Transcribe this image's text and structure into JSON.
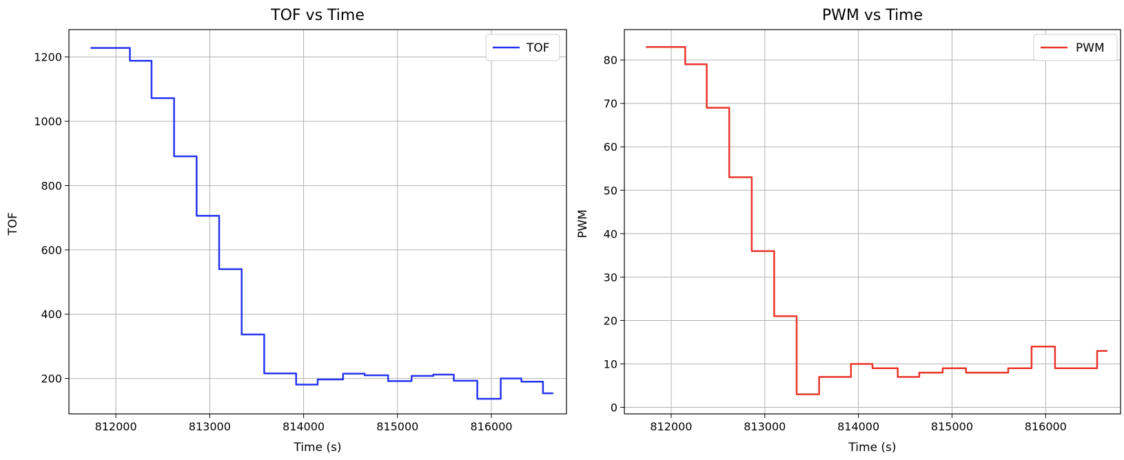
{
  "chart_data": [
    {
      "type": "line",
      "title": "TOF vs Time",
      "xlabel": "Time (s)",
      "ylabel": "TOF",
      "xlim": [
        811500,
        816800
      ],
      "ylim": [
        90,
        1285
      ],
      "xticks": [
        812000,
        813000,
        814000,
        815000,
        816000
      ],
      "yticks": [
        200,
        400,
        600,
        800,
        1000,
        1200
      ],
      "grid": true,
      "legend_position": "top-right",
      "series": [
        {
          "name": "TOF",
          "color": "#2433f0",
          "step": true,
          "x": [
            811730,
            812150,
            812380,
            812620,
            812860,
            813100,
            813340,
            813580,
            813920,
            814150,
            814420,
            814650,
            814900,
            815150,
            815380,
            815600,
            815850,
            816100,
            816320,
            816550,
            816660
          ],
          "y": [
            1228,
            1188,
            1072,
            891,
            706,
            540,
            337,
            216,
            181,
            197,
            215,
            210,
            192,
            208,
            212,
            193,
            137,
            200,
            190,
            154,
            154
          ]
        }
      ]
    },
    {
      "type": "line",
      "title": "PWM vs Time",
      "xlabel": "Time (s)",
      "ylabel": "PWM",
      "xlim": [
        811500,
        816800
      ],
      "ylim": [
        -1.5,
        87
      ],
      "xticks": [
        812000,
        813000,
        814000,
        815000,
        816000
      ],
      "yticks": [
        0,
        10,
        20,
        30,
        40,
        50,
        60,
        70,
        80
      ],
      "grid": true,
      "legend_position": "top-right",
      "series": [
        {
          "name": "PWM",
          "color": "#e8352a",
          "step": true,
          "x": [
            811730,
            812150,
            812380,
            812620,
            812860,
            813100,
            813340,
            813580,
            813920,
            814150,
            814420,
            814650,
            814900,
            815150,
            815380,
            815600,
            815850,
            816100,
            816320,
            816550,
            816660
          ],
          "y": [
            83,
            79,
            69,
            53,
            36,
            21,
            3,
            7,
            10,
            9,
            7,
            8,
            9,
            8,
            8,
            9,
            14,
            9,
            9,
            13,
            13
          ]
        }
      ]
    }
  ]
}
